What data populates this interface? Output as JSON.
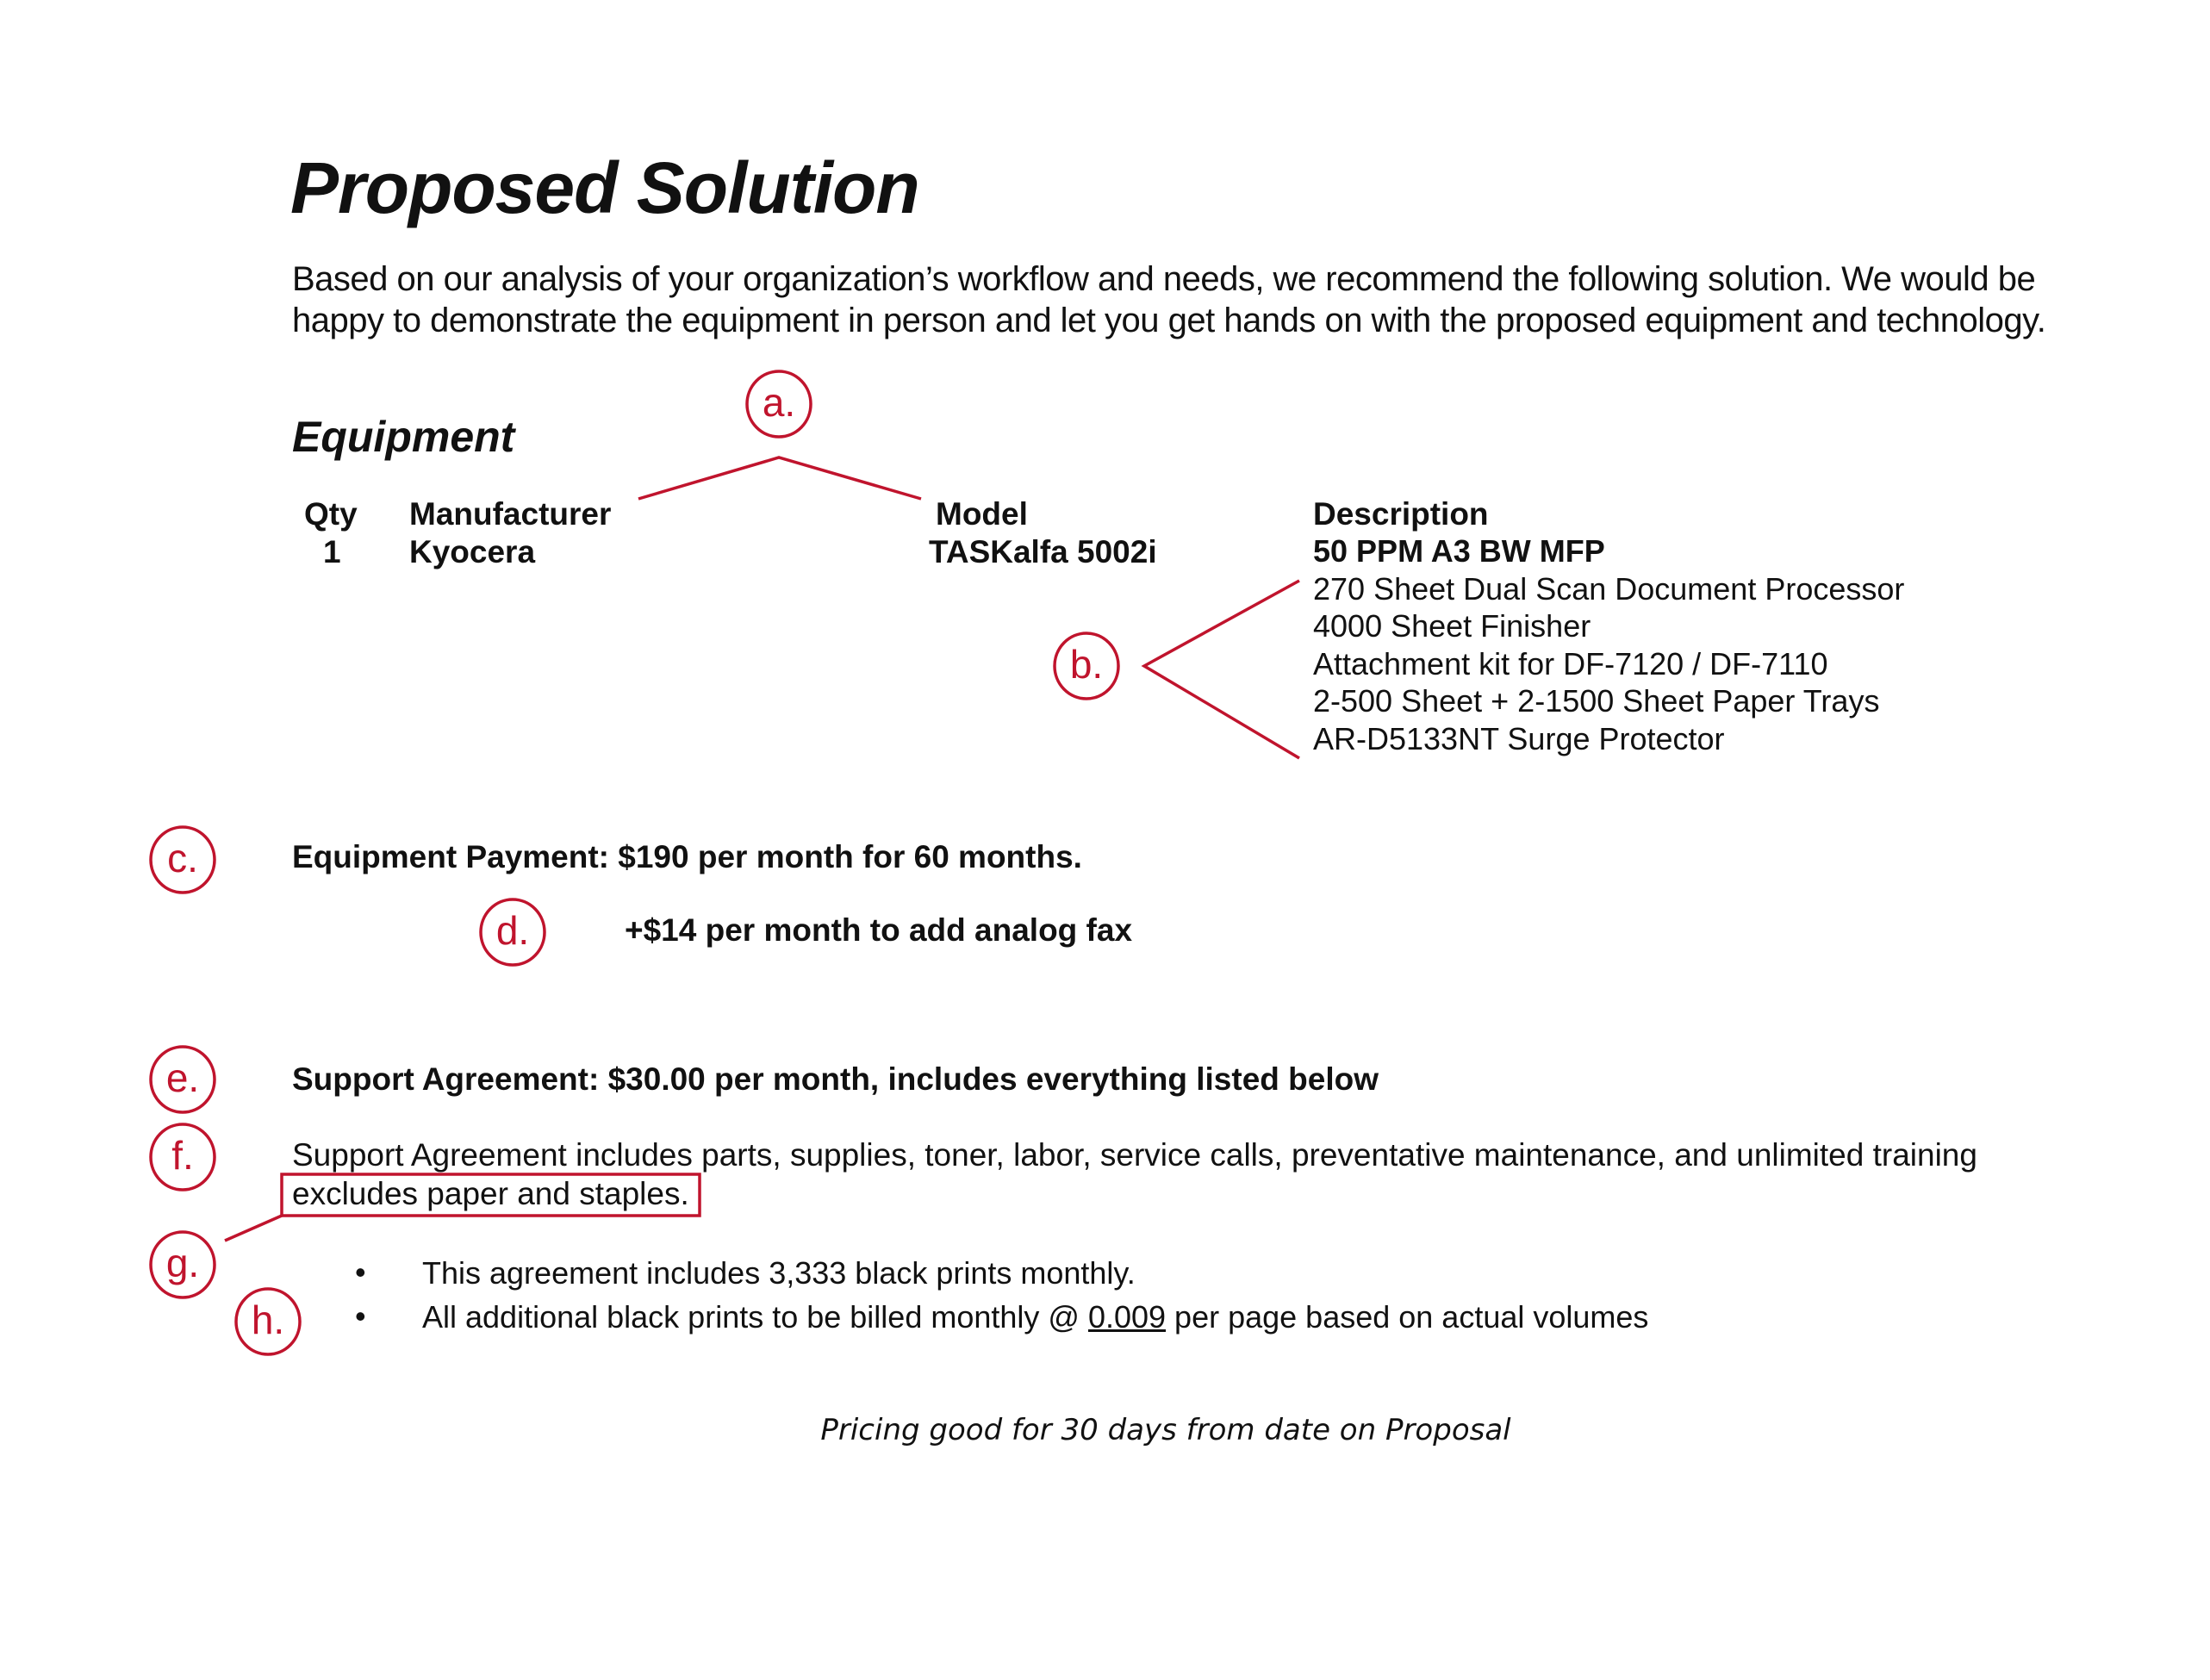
{
  "title": "Proposed Solution",
  "intro": "Based on our analysis of your organization’s workflow and needs, we recommend the following solution. We would be happy to demonstrate the equipment in person and let you get hands on with the proposed equipment and technology.",
  "equipment": {
    "heading": "Equipment",
    "headers": {
      "qty": "Qty",
      "manufacturer": "Manufacturer",
      "model": "Model",
      "description": "Description"
    },
    "row": {
      "qty": "1",
      "manufacturer": "Kyocera",
      "model": "TASKalfa 5002i",
      "description": [
        "50 PPM A3 BW MFP",
        "270 Sheet Dual Scan Document Processor",
        "4000 Sheet Finisher",
        "Attachment kit for DF-7120 / DF-7110",
        "2-500 Sheet + 2-1500 Sheet Paper Trays",
        "AR-D5133NT Surge Protector"
      ]
    }
  },
  "payment": {
    "equipment": "Equipment Payment: $190 per month for 60 months.",
    "fax_addon": "+$14 per month to add analog fax",
    "support": "Support Agreement: $30.00 per month, includes everything listed below",
    "support_includes": "Support Agreement includes parts, supplies, toner, labor, service calls, preventative maintenance, and unlimited training",
    "support_excludes": "excludes paper and staples.",
    "bullets": {
      "b1": "This agreement includes 3,333 black prints monthly.",
      "b2_pre": "All additional black prints to be billed monthly @ ",
      "b2_rate": "0.009",
      "b2_post": " per page based on actual volumes"
    }
  },
  "footer": "Pricing good for 30 days from date on Proposal",
  "annotations": {
    "a": "a.",
    "b": "b.",
    "c": "c.",
    "d": "d.",
    "e": "e.",
    "f": "f.",
    "g": "g.",
    "h": "h.",
    "color": "#c0142d"
  }
}
